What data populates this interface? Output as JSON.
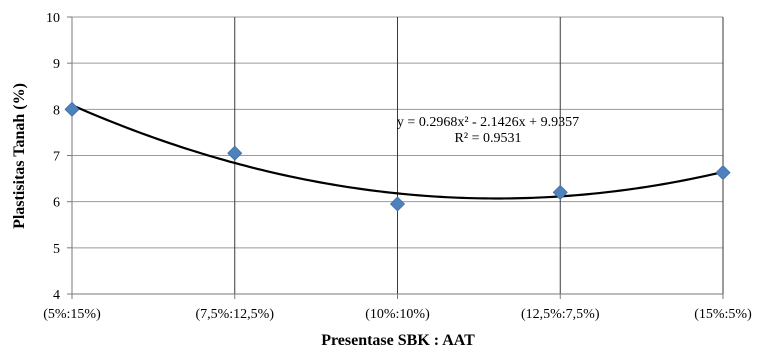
{
  "chart_data": {
    "type": "scatter",
    "title": "",
    "xlabel": "Presentase SBK : AAT",
    "ylabel": "Plastisitas Tanah (%)",
    "categories": [
      "(5%:15%)",
      "(7,5%:12,5%)",
      "(10%:10%)",
      "(12,5%:7,5%)",
      "(15%:5%)"
    ],
    "series": [
      {
        "values": [
          8.0,
          7.05,
          5.95,
          6.2,
          6.63
        ],
        "color": "#4f81bd",
        "marker": "diamond"
      }
    ],
    "trendline": {
      "type": "polynomial",
      "coefficients": [
        0.2968,
        -2.1426,
        9.9357
      ],
      "equation": "y = 0.2968x² - 2.1426x + 9.9357",
      "r_squared": "R² = 0.9531",
      "color": "#000000"
    },
    "ylim": [
      4,
      10
    ],
    "yticks": [
      "4",
      "5",
      "6",
      "7",
      "8",
      "9",
      "10"
    ],
    "grid": {
      "horizontal": true,
      "vertical": true
    }
  }
}
